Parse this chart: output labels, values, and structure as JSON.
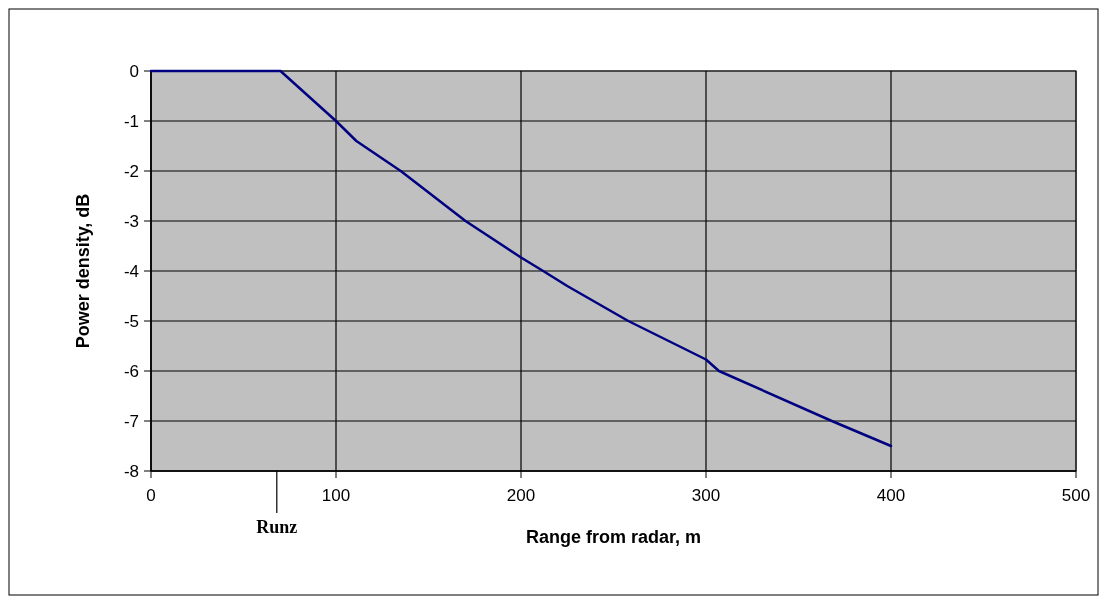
{
  "chart_data": {
    "type": "line",
    "xlabel": "Range from radar, m",
    "ylabel": "Power density, dB",
    "x": [
      0,
      70,
      100,
      111,
      135,
      170,
      200,
      212,
      225,
      258,
      300,
      307,
      368,
      400
    ],
    "series": [
      {
        "color": "#000080",
        "values": [
          0,
          0,
          -1,
          -1.4,
          -2,
          -3,
          -3.73,
          -4,
          -4.3,
          -5,
          -5.77,
          -6,
          -7,
          -7.5
        ]
      }
    ],
    "xlim": [
      0,
      500
    ],
    "xticks": [
      0,
      100,
      200,
      300,
      400,
      500
    ],
    "ylim": [
      -8,
      0
    ],
    "yticks": [
      -8,
      -7,
      -6,
      -5,
      -4,
      -3,
      -2,
      -1,
      0
    ],
    "grid": true,
    "marker": "none",
    "line_style": "solid",
    "ref_lines": [
      {
        "axis": "x",
        "value": 68,
        "label": "Runz"
      }
    ]
  }
}
